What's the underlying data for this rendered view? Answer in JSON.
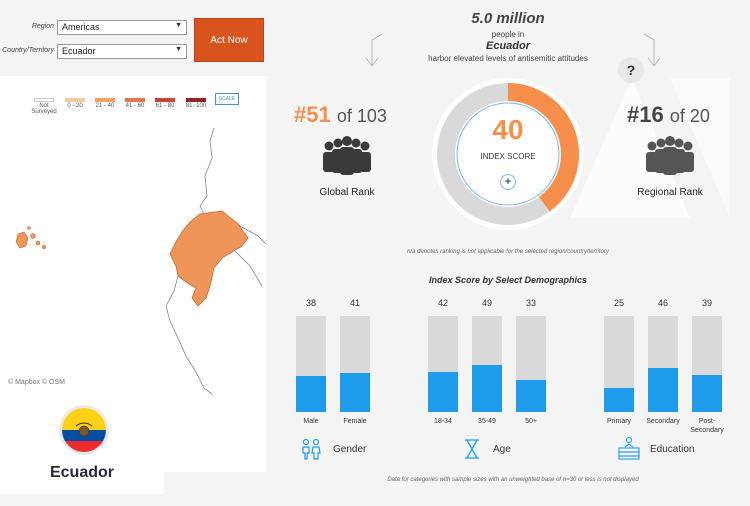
{
  "filters": {
    "region_label": "Region",
    "region_value": "Americas",
    "country_label": "Country/Territory",
    "country_value": "Ecuador",
    "act_button": "Act Now"
  },
  "legend": {
    "items": [
      {
        "label": "Not Surveyed",
        "color": "#ffffff"
      },
      {
        "label": "0 - 20",
        "color": "#f6c99c"
      },
      {
        "label": "21 - 40",
        "color": "#f0a164"
      },
      {
        "label": "41 - 60",
        "color": "#e07a4e"
      },
      {
        "label": "61 - 80",
        "color": "#c4473a"
      },
      {
        "label": "81- 100",
        "color": "#8e2424"
      }
    ],
    "scale_label": "SCALE"
  },
  "map": {
    "attribution": "© Mapbox © OSM",
    "highlight_color": "#f0955a"
  },
  "country": {
    "name": "Ecuador"
  },
  "headline": {
    "people": "5.0 million",
    "line1": "people in",
    "country": "Ecuador",
    "line2": "harbor elevated levels of antisemitic attitudes"
  },
  "global_rank": {
    "rank": "#51",
    "of": "of 103",
    "label": "Global Rank"
  },
  "regional_rank": {
    "rank": "#16",
    "of": "of 20",
    "label": "Regional Rank"
  },
  "index": {
    "score": "40",
    "score_value": 40,
    "label": "INDEX SCORE",
    "color": "#f58f4b"
  },
  "help_icon": "?",
  "rank_note": "n/a denotes ranking is not applicable for the selected region/country/territory",
  "demographics": {
    "title": "Index Score by Select Demographics",
    "groups": [
      {
        "label": "Gender",
        "icon": "gender-icon",
        "bars": [
          {
            "category": "Male",
            "value": 38
          },
          {
            "category": "Female",
            "value": 41
          }
        ]
      },
      {
        "label": "Age",
        "icon": "hourglass-icon",
        "bars": [
          {
            "category": "18-34",
            "value": 42
          },
          {
            "category": "35-49",
            "value": 49
          },
          {
            "category": "50+",
            "value": 33
          }
        ]
      },
      {
        "label": "Education",
        "icon": "education-icon",
        "bars": [
          {
            "category": "Primary",
            "value": 25
          },
          {
            "category": "Secondary",
            "value": 46
          },
          {
            "category": "Post-Secondary",
            "value": 39
          }
        ]
      }
    ],
    "footnote": "Data for categories with sample sizes with an unweighted base of n=30 or less is not displayed"
  }
}
